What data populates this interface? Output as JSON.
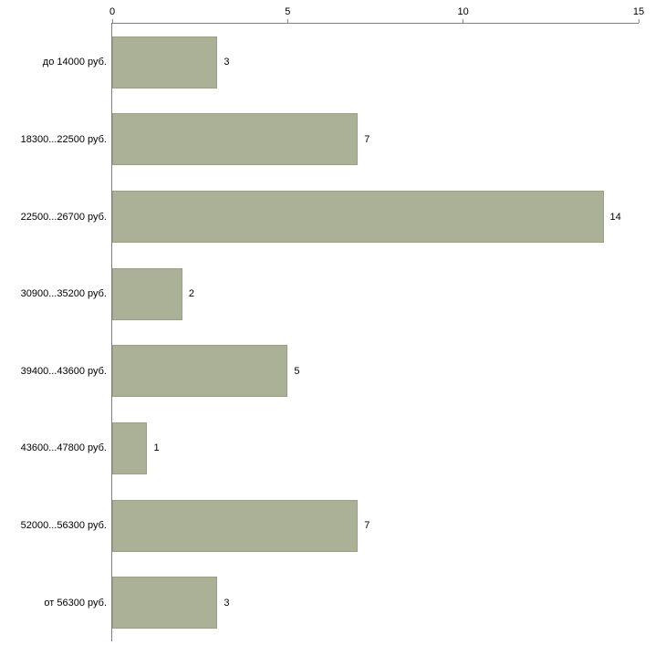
{
  "chart_data": {
    "type": "bar",
    "orientation": "horizontal",
    "title": "",
    "xlabel": "",
    "ylabel": "",
    "categories": [
      "до 14000 руб.",
      "18300...22500 руб.",
      "22500...26700 руб.",
      "30900...35200 руб.",
      "39400...43600 руб.",
      "43600...47800 руб.",
      "52000...56300 руб.",
      "от 56300 руб."
    ],
    "values": [
      3,
      7,
      14,
      2,
      5,
      1,
      7,
      3
    ],
    "xlim": [
      0,
      15
    ],
    "x_ticks": [
      0,
      5,
      10,
      15
    ],
    "value_labels": [
      3,
      7,
      14,
      2,
      5,
      1,
      7,
      3
    ],
    "bar_color": "#abb197",
    "bar_border_color": "#99a084",
    "axis_color": "#808080",
    "background_color": "#ffffff",
    "grid": false,
    "legend": "none",
    "tick_position": "top"
  }
}
